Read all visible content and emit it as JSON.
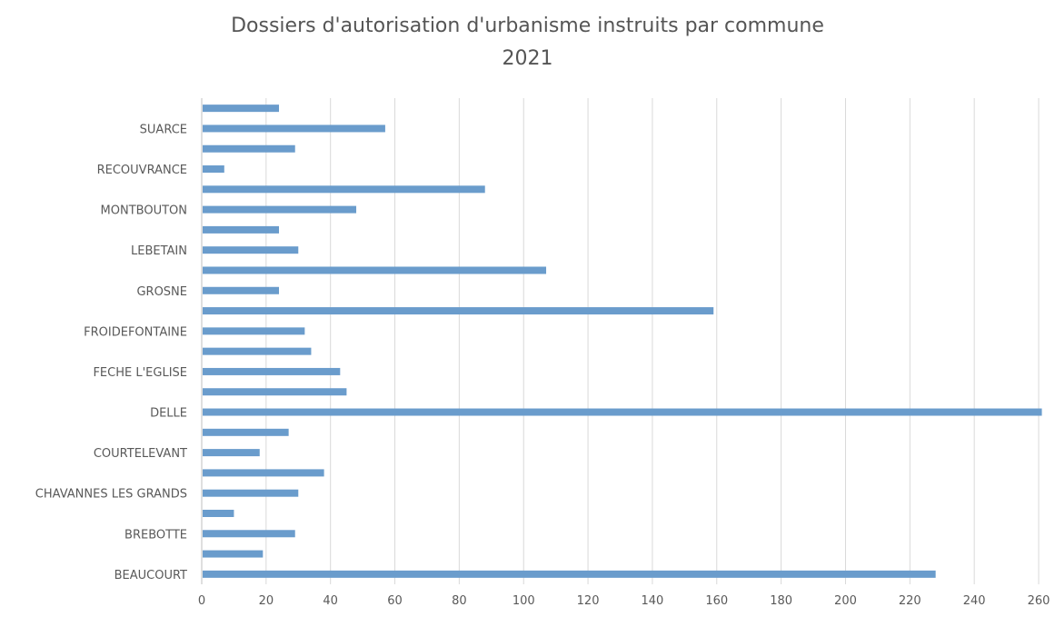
{
  "chart_data": {
    "type": "bar",
    "orientation": "horizontal",
    "title": "Dossiers d'autorisation d'urbanisme instruits par commune",
    "subtitle": "2021",
    "xlim": [
      0,
      260
    ],
    "x_ticks": [
      0,
      20,
      40,
      60,
      80,
      100,
      120,
      140,
      160,
      180,
      200,
      220,
      240,
      260
    ],
    "categories_bottom_to_top": [
      "BEAUCOURT",
      "",
      "BREBOTTE",
      "",
      "CHAVANNES LES GRANDS",
      "",
      "COURTELEVANT",
      "",
      "DELLE",
      "",
      "FECHE L'EGLISE",
      "",
      "FROIDEFONTAINE",
      "",
      "GROSNE",
      "",
      "LEBETAIN",
      "",
      "MONTBOUTON",
      "",
      "RECOUVRANCE",
      "",
      "SUARCE",
      ""
    ],
    "values_bottom_to_top": [
      228,
      19,
      29,
      10,
      30,
      38,
      18,
      27,
      261,
      45,
      43,
      34,
      32,
      159,
      24,
      107,
      30,
      24,
      48,
      88,
      7,
      29,
      57,
      24
    ],
    "bar_color": "#6a9ccc",
    "grid": "vertical",
    "legend": "none"
  }
}
